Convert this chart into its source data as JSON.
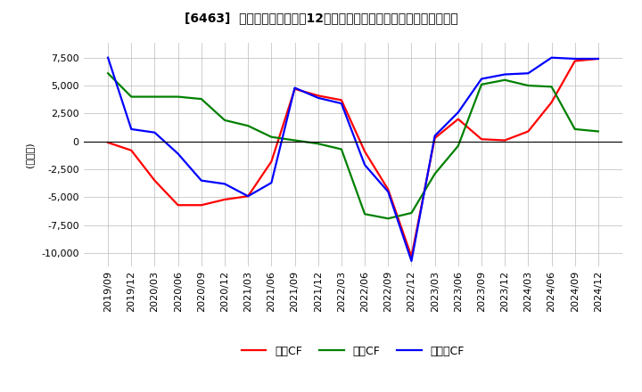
{
  "title": "[6463]  キャッシュフローの12か月移動合計の対前年同期増減額の推移",
  "ylabel": "(百万円)",
  "ylim": [
    -11200,
    8800
  ],
  "yticks": [
    -10000,
    -7500,
    -5000,
    -2500,
    0,
    2500,
    5000,
    7500
  ],
  "legend_labels": [
    "営業CF",
    "投資CF",
    "フリーCF"
  ],
  "legend_colors": [
    "#ff0000",
    "#008000",
    "#0000ff"
  ],
  "dates": [
    "2019/09",
    "2019/12",
    "2020/03",
    "2020/06",
    "2020/09",
    "2020/12",
    "2021/03",
    "2021/06",
    "2021/09",
    "2021/12",
    "2022/03",
    "2022/06",
    "2022/09",
    "2022/12",
    "2023/03",
    "2023/06",
    "2023/09",
    "2023/12",
    "2024/03",
    "2024/06",
    "2024/09",
    "2024/12"
  ],
  "series_eigyo": [
    -100,
    -800,
    -3500,
    -5700,
    -5700,
    -5200,
    -4900,
    -1800,
    4700,
    4100,
    3700,
    -900,
    -4300,
    -10300,
    300,
    2000,
    200,
    100,
    900,
    3500,
    7200,
    7400
  ],
  "series_toshi": [
    6100,
    4000,
    4000,
    4000,
    3800,
    1900,
    1400,
    400,
    100,
    -200,
    -700,
    -6500,
    -6900,
    -6400,
    -2900,
    -400,
    5100,
    5500,
    5000,
    4900,
    1100,
    900
  ],
  "series_free": [
    7500,
    1100,
    800,
    -1100,
    -3500,
    -3800,
    -4900,
    -3700,
    4800,
    3900,
    3400,
    -2100,
    -4500,
    -10700,
    500,
    2600,
    5600,
    6000,
    6100,
    7500,
    7400,
    7400
  ],
  "background_color": "#ffffff",
  "grid_color": "#bbbbbb"
}
